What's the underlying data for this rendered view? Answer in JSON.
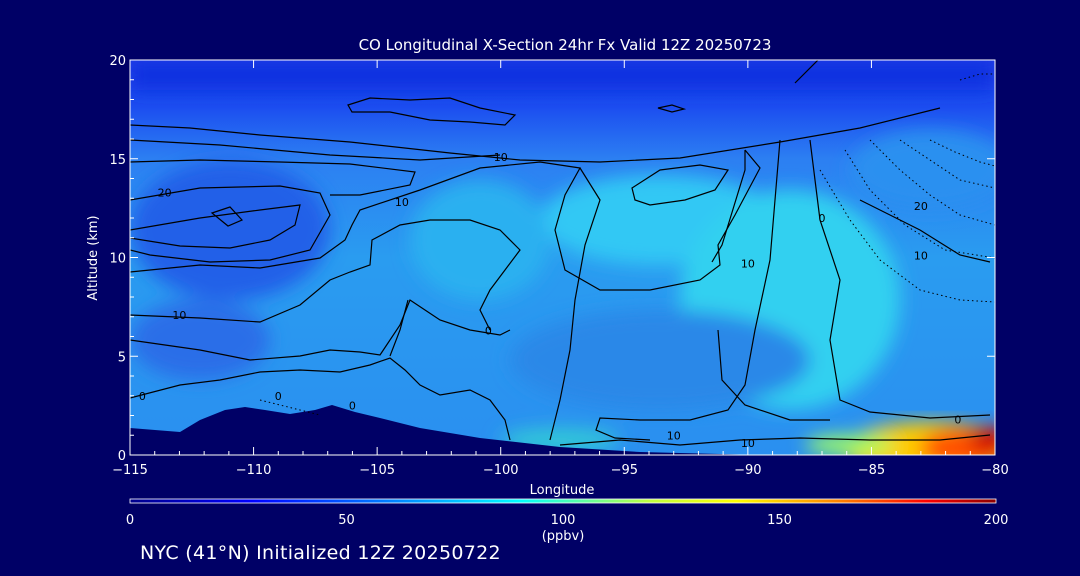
{
  "chart_data": {
    "type": "heatmap",
    "title": "CO Longitudinal X-Section 24hr  Fx Valid 12Z 20250723",
    "xlabel": "Longitude",
    "ylabel": "Altitude (km)",
    "xlim": [
      -115,
      -80
    ],
    "ylim": [
      0,
      20
    ],
    "x_ticks": [
      -115,
      -110,
      -105,
      -100,
      -95,
      -90,
      -85,
      -80
    ],
    "x_tick_labels": [
      "−115",
      "−110",
      "−105",
      "−100",
      "−95",
      "−90",
      "−85",
      "−80"
    ],
    "y_ticks": [
      0,
      5,
      10,
      15,
      20
    ],
    "y_tick_labels": [
      "0",
      "5",
      "10",
      "15",
      "20"
    ],
    "colorbar": {
      "range": [
        0,
        200
      ],
      "ticks": [
        0,
        50,
        100,
        150,
        200
      ],
      "tick_labels": [
        "0",
        "50",
        "100",
        "150",
        "200"
      ],
      "unit": "(ppbv)",
      "colors": [
        "#00008b",
        "#0000ff",
        "#0080ff",
        "#00ffff",
        "#ffff00",
        "#ff8000",
        "#ff0000",
        "#8b0000"
      ]
    },
    "contour_labels": [
      {
        "text": "20",
        "x": -113.6,
        "y": 13.3
      },
      {
        "text": "10",
        "x": -113.0,
        "y": 7.1
      },
      {
        "text": "0",
        "x": -114.5,
        "y": 3.0
      },
      {
        "text": "0",
        "x": -109.0,
        "y": 3.0
      },
      {
        "text": "0",
        "x": -106.0,
        "y": 2.5
      },
      {
        "text": "10",
        "x": -104.0,
        "y": 12.8
      },
      {
        "text": "0",
        "x": -100.5,
        "y": 6.3
      },
      {
        "text": "10",
        "x": -100.0,
        "y": 15.1
      },
      {
        "text": "10",
        "x": -93.0,
        "y": 1.0
      },
      {
        "text": "10",
        "x": -90.0,
        "y": 0.6
      },
      {
        "text": "10",
        "x": -90.0,
        "y": 9.7
      },
      {
        "text": "0",
        "x": -87.0,
        "y": 12.0
      },
      {
        "text": "20",
        "x": -83.0,
        "y": 12.6
      },
      {
        "text": "10",
        "x": -83.0,
        "y": 10.1
      },
      {
        "text": "0",
        "x": -81.5,
        "y": 1.8
      }
    ]
  },
  "footer": {
    "text": "NYC (41°N) Initialized 12Z 20250722"
  }
}
